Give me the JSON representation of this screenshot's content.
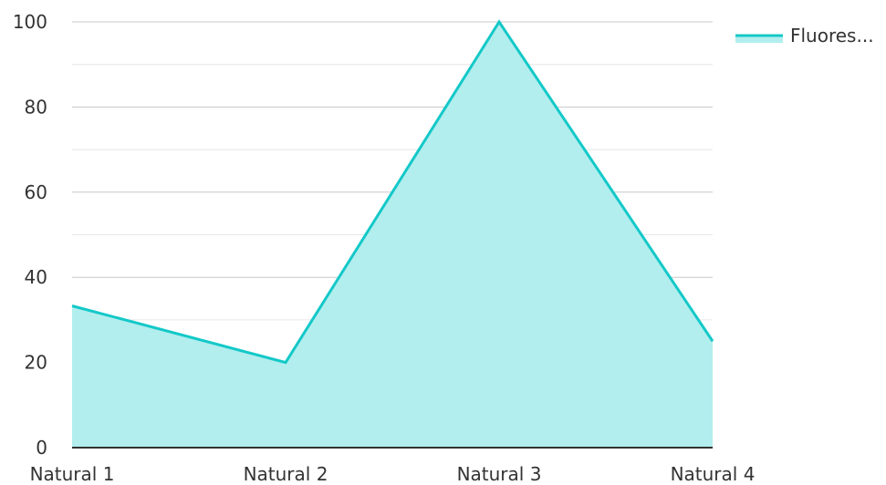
{
  "chart_data": {
    "type": "area",
    "categories": [
      "Natural 1",
      "Natural 2",
      "Natural 3",
      "Natural 4"
    ],
    "series": [
      {
        "name": "Fluores...",
        "values": [
          33.3,
          20,
          100,
          25
        ],
        "line_color": "#14c8c8",
        "fill_color": "#b2eeee"
      }
    ],
    "ylim": [
      0,
      100
    ],
    "yticks": [
      0,
      20,
      40,
      60,
      80,
      100
    ],
    "title": "",
    "xlabel": "",
    "ylabel": "",
    "grid": true,
    "legend_position": "top-right"
  },
  "colors": {
    "major_grid": "#c8c8c8",
    "minor_grid": "#e6e6e6",
    "axis": "#333333",
    "text": "#333333"
  }
}
